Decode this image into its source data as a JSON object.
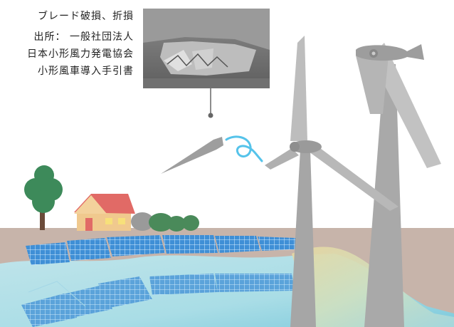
{
  "caption": {
    "title": "ブレード破損、折損",
    "source_label": "出所： 一般社団法人",
    "org": "日本小形風力発電協会",
    "doc": "小形風車導入手引書"
  },
  "colors": {
    "ground": "#c7b4aa",
    "water": "#b9e2ea",
    "panel": "#3f8fd6",
    "turbine": "#a9a9a9",
    "house_roof": "#e16a66",
    "house_wall": "#f0c98e",
    "tree": "#3d8a5a",
    "wind_arrow": "#55c3ea"
  },
  "icons": [
    "broken-blade-photo",
    "wind-turbine-icon",
    "house-icon",
    "tree-icon",
    "solar-panel-icon",
    "wind-swirl-icon"
  ]
}
